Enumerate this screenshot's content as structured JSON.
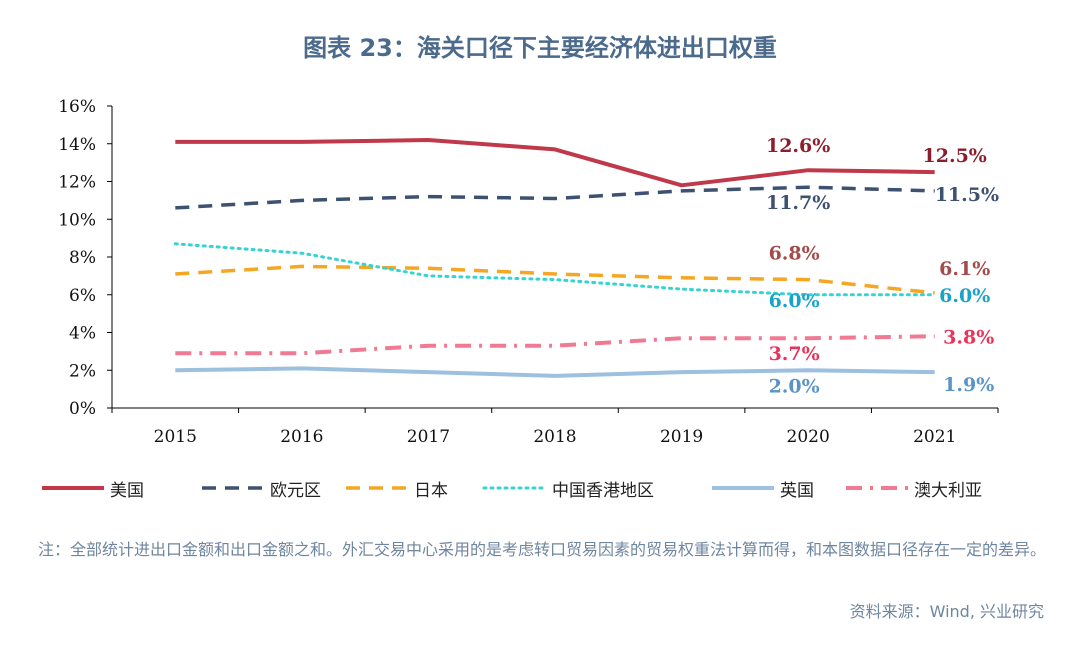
{
  "title": "图表 23：海关口径下主要经济体进出口权重",
  "note": "注：全部统计进出口金额和出口金额之和。外汇交易中心采用的是考虑转口贸易因素的贸易权重法计算而得，和本图数据口径存在一定的差异。",
  "source": "资料来源：Wind, 兴业研究",
  "chart_data": {
    "type": "line",
    "x": [
      "2015",
      "2016",
      "2017",
      "2018",
      "2019",
      "2020",
      "2021"
    ],
    "y_ticks": [
      "0%",
      "2%",
      "4%",
      "6%",
      "8%",
      "10%",
      "12%",
      "14%",
      "16%"
    ],
    "ylim": [
      0,
      16
    ],
    "legend_position": "bottom",
    "series": [
      {
        "name": "美国",
        "color": "#c0394b",
        "dash": "solid",
        "width": 4,
        "values": [
          14.1,
          14.1,
          14.2,
          13.7,
          11.8,
          12.6,
          12.5
        ]
      },
      {
        "name": "欧元区",
        "color": "#3d5170",
        "dash": "dashed",
        "width": 3.5,
        "values": [
          10.6,
          11.0,
          11.2,
          11.1,
          11.5,
          11.7,
          11.5
        ]
      },
      {
        "name": "日本",
        "color": "#f5a623",
        "dash": "dashed",
        "width": 3.5,
        "values": [
          7.1,
          7.5,
          7.4,
          7.1,
          6.9,
          6.8,
          6.1
        ]
      },
      {
        "name": "中国香港地区",
        "color": "#37d3d3",
        "dash": "dotted",
        "width": 3,
        "values": [
          8.7,
          8.2,
          7.0,
          6.8,
          6.3,
          6.0,
          6.0
        ]
      },
      {
        "name": "英国",
        "color": "#9dbfe0",
        "dash": "solid",
        "width": 4,
        "values": [
          2.0,
          2.1,
          1.9,
          1.7,
          1.9,
          2.0,
          1.9
        ]
      },
      {
        "name": "澳大利亚",
        "color": "#f07a94",
        "dash": "dashdot",
        "width": 4,
        "values": [
          2.9,
          2.9,
          3.3,
          3.3,
          3.7,
          3.7,
          3.8
        ]
      }
    ],
    "annotations": [
      {
        "text": "12.6%",
        "series": "美国",
        "x": "2020",
        "y": 12.6,
        "color": "#8b1e2c"
      },
      {
        "text": "12.5%",
        "series": "美国",
        "x": "2021",
        "y": 12.5,
        "color": "#8b1e2c"
      },
      {
        "text": "11.7%",
        "series": "欧元区",
        "x": "2020",
        "y": 11.7,
        "color": "#3d5170"
      },
      {
        "text": "11.5%",
        "series": "欧元区",
        "x": "2021",
        "y": 11.5,
        "color": "#3d5170"
      },
      {
        "text": "6.8%",
        "series": "日本",
        "x": "2020",
        "y": 6.8,
        "color": "#a34a4a"
      },
      {
        "text": "6.1%",
        "series": "日本",
        "x": "2021",
        "y": 6.1,
        "color": "#a34a4a"
      },
      {
        "text": "6.0%",
        "series": "中国香港地区",
        "x": "2020",
        "y": 6.0,
        "color": "#1aa3c9"
      },
      {
        "text": "6.0%",
        "series": "中国香港地区",
        "x": "2021",
        "y": 6.0,
        "color": "#1aa3c9"
      },
      {
        "text": "3.7%",
        "series": "澳大利亚",
        "x": "2020",
        "y": 3.7,
        "color": "#e8335a"
      },
      {
        "text": "3.8%",
        "series": "澳大利亚",
        "x": "2021",
        "y": 3.8,
        "color": "#e8335a"
      },
      {
        "text": "2.0%",
        "series": "英国",
        "x": "2020",
        "y": 2.0,
        "color": "#5a93c8"
      },
      {
        "text": "1.9%",
        "series": "英国",
        "x": "2021",
        "y": 1.9,
        "color": "#5a93c8"
      }
    ]
  }
}
